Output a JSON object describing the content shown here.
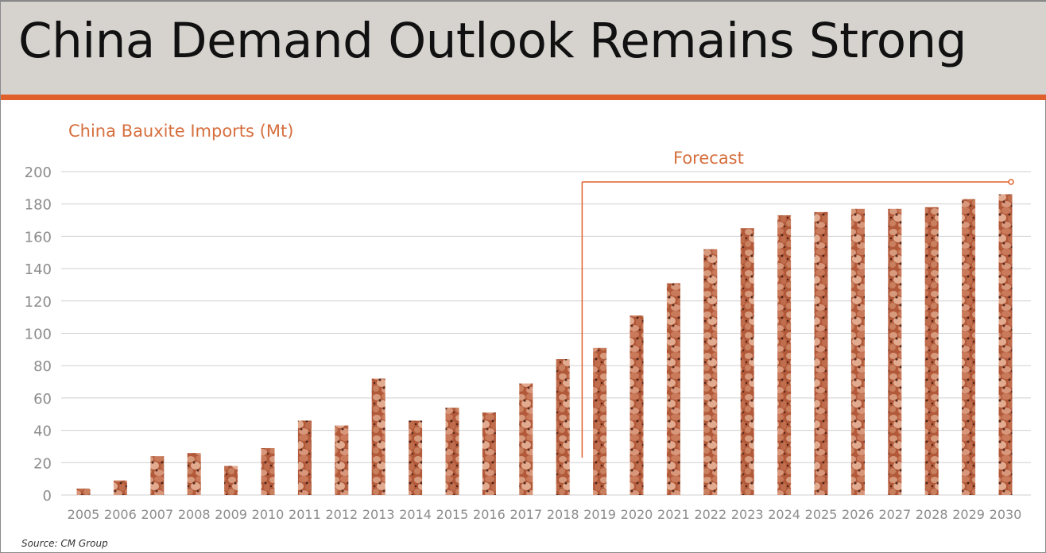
{
  "header": {
    "title": "China Demand Outlook Remains Strong"
  },
  "colors": {
    "header_bg": "#d6d3cf",
    "accent": "#e0602c",
    "label_orange": "#d66f3e",
    "bar_base": "#b2593a",
    "gridline": "#cfcfcf",
    "tick_text": "#8c8c8c"
  },
  "chart_data": {
    "type": "bar",
    "title": "China Bauxite Imports (Mt)",
    "xlabel": "",
    "ylabel": "",
    "ylim": [
      0,
      200
    ],
    "yticks": [
      0,
      20,
      40,
      60,
      80,
      100,
      120,
      140,
      160,
      180,
      200
    ],
    "grid": true,
    "categories": [
      "2005",
      "2006",
      "2007",
      "2008",
      "2009",
      "2010",
      "2011",
      "2012",
      "2013",
      "2014",
      "2015",
      "2016",
      "2017",
      "2018",
      "2019",
      "2020",
      "2021",
      "2022",
      "2023",
      "2024",
      "2025",
      "2026",
      "2027",
      "2028",
      "2029",
      "2030"
    ],
    "values": [
      4,
      9,
      24,
      26,
      18,
      29,
      46,
      43,
      72,
      46,
      54,
      51,
      69,
      84,
      91,
      111,
      131,
      152,
      165,
      173,
      175,
      177,
      177,
      178,
      183,
      186
    ],
    "annotation": {
      "label": "Forecast",
      "start_category": "2019",
      "end_category": "2030"
    },
    "bar_pattern": "bauxite-pebble-texture"
  },
  "footer": {
    "source": "Source: CM Group"
  }
}
